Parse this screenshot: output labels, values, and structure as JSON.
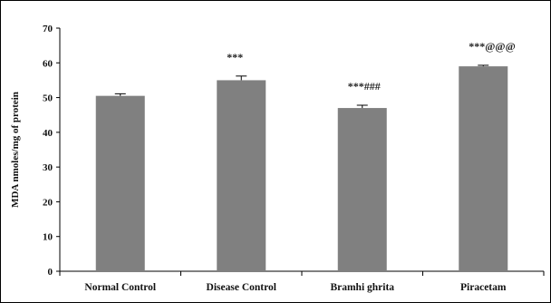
{
  "chart_data": {
    "type": "bar",
    "categories": [
      "Normal Control",
      "Disease Control",
      "Bramhi ghrita",
      "Piracetam"
    ],
    "values": [
      50.5,
      55.0,
      47.0,
      59.0
    ],
    "errors": [
      0.6,
      1.2,
      0.8,
      0.3
    ],
    "annotations": [
      "",
      "***",
      "***###",
      "***@@@"
    ],
    "ylabel": "MDA nmoles/mg of protein",
    "xlabel": "",
    "title": "",
    "ylim": [
      0,
      70
    ],
    "yticks": [
      0,
      10,
      20,
      30,
      40,
      50,
      60,
      70
    ],
    "grid": false,
    "bar_color": "#808080",
    "error_color": "#000000"
  }
}
